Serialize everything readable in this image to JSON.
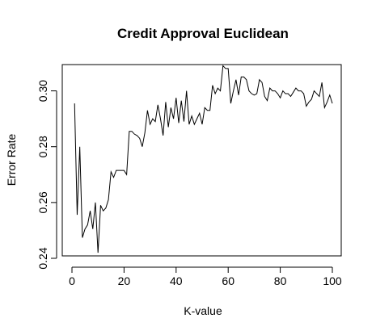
{
  "chart_data": {
    "type": "line",
    "title": "Credit Approval Euclidean",
    "xlabel": "K-value",
    "ylabel": "Error Rate",
    "xlim": [
      1,
      100
    ],
    "ylim": [
      0.24,
      0.31
    ],
    "x_ticks": [
      0,
      20,
      40,
      60,
      80,
      100
    ],
    "y_ticks": [
      0.24,
      0.26,
      0.28,
      0.3
    ],
    "x_tick_labels": [
      "0",
      "20",
      "40",
      "60",
      "80",
      "100"
    ],
    "y_tick_labels": [
      "0.24",
      "0.26",
      "0.28",
      "0.30"
    ],
    "grid": false,
    "legend": "none",
    "line_color": "#000000",
    "series": [
      {
        "x": [
          1,
          2,
          3,
          4,
          5,
          6,
          7,
          8,
          9,
          10,
          11,
          12,
          13,
          14,
          15,
          16,
          17,
          18,
          19,
          20,
          21,
          22,
          23,
          24,
          25,
          26,
          27,
          28,
          29,
          30,
          31,
          32,
          33,
          34,
          35,
          36,
          37,
          38,
          39,
          40,
          41,
          42,
          43,
          44,
          45,
          46,
          47,
          48,
          49,
          50,
          51,
          52,
          53,
          54,
          55,
          56,
          57,
          58,
          59,
          60,
          61,
          62,
          63,
          64,
          65,
          66,
          67,
          68,
          69,
          70,
          71,
          72,
          73,
          74,
          75,
          76,
          77,
          78,
          79,
          80,
          81,
          82,
          83,
          84,
          85,
          86,
          87,
          88,
          89,
          90,
          91,
          92,
          93,
          94,
          95,
          96,
          97,
          98,
          99,
          100
        ],
        "values": [
          0.2955,
          0.2556,
          0.28,
          0.2474,
          0.2505,
          0.252,
          0.257,
          0.2505,
          0.26,
          0.242,
          0.259,
          0.257,
          0.258,
          0.261,
          0.271,
          0.269,
          0.2715,
          0.2715,
          0.2715,
          0.2715,
          0.27,
          0.2855,
          0.2855,
          0.2845,
          0.284,
          0.283,
          0.28,
          0.285,
          0.293,
          0.288,
          0.29,
          0.289,
          0.295,
          0.29,
          0.284,
          0.296,
          0.287,
          0.294,
          0.29,
          0.2975,
          0.2885,
          0.2965,
          0.289,
          0.3,
          0.288,
          0.291,
          0.288,
          0.29,
          0.292,
          0.288,
          0.294,
          0.293,
          0.293,
          0.302,
          0.299,
          0.301,
          0.3,
          0.309,
          0.308,
          0.308,
          0.2955,
          0.3,
          0.304,
          0.2985,
          0.305,
          0.305,
          0.304,
          0.3,
          0.299,
          0.2985,
          0.299,
          0.304,
          0.303,
          0.298,
          0.2965,
          0.301,
          0.3,
          0.3,
          0.299,
          0.2975,
          0.3,
          0.299,
          0.299,
          0.298,
          0.2995,
          0.301,
          0.3,
          0.3,
          0.299,
          0.2945,
          0.296,
          0.297,
          0.3,
          0.299,
          0.298,
          0.303,
          0.294,
          0.296,
          0.2985,
          0.2955
        ]
      }
    ]
  }
}
